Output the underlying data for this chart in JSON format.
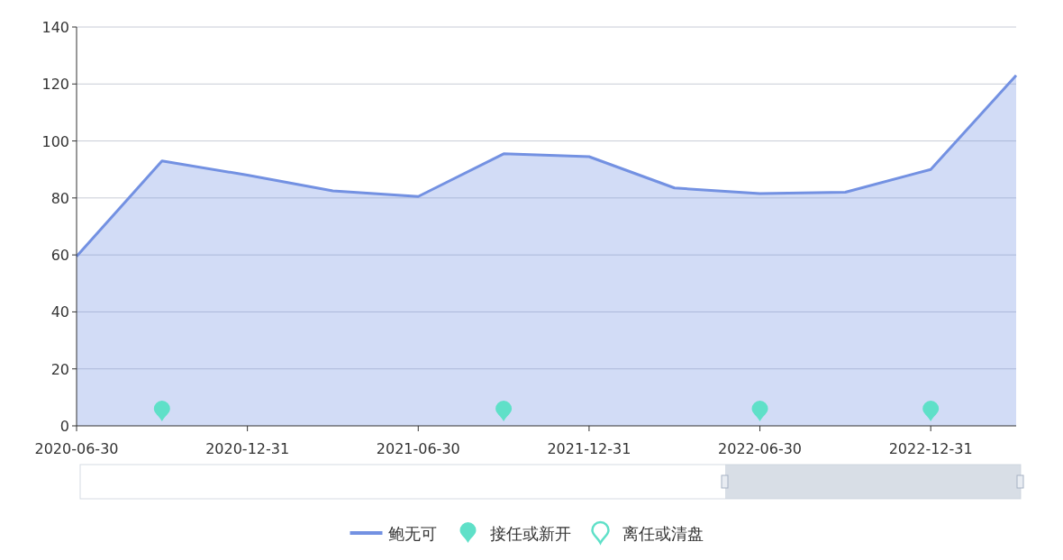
{
  "chart_data": {
    "type": "area",
    "categories": [
      "2020-06-30",
      null,
      "2020-12-31",
      null,
      "2021-06-30",
      null,
      "2021-12-31",
      null,
      "2022-06-30",
      null,
      "2022-12-31",
      null
    ],
    "ylim": [
      0,
      140
    ],
    "yticks": [
      0,
      20,
      40,
      60,
      80,
      100,
      120,
      140
    ],
    "grid": "y",
    "legend": "bottom",
    "series": [
      {
        "name": "鲍无可",
        "color": "#7391e2",
        "values": [
          59.5,
          93,
          88,
          82.5,
          80.5,
          95.5,
          94.5,
          83.5,
          81.5,
          82,
          90,
          123
        ]
      },
      {
        "name": "接任或新开",
        "type": "scatter",
        "color": "#5fe0c8",
        "values": [
          null,
          6,
          null,
          null,
          null,
          6,
          null,
          null,
          6,
          null,
          6,
          null
        ]
      },
      {
        "name": "离任或清盘",
        "type": "scatter",
        "color": "#5fe0c8",
        "values": [
          null,
          null,
          null,
          null,
          null,
          null,
          null,
          null,
          null,
          null,
          null,
          null
        ]
      }
    ]
  }
}
